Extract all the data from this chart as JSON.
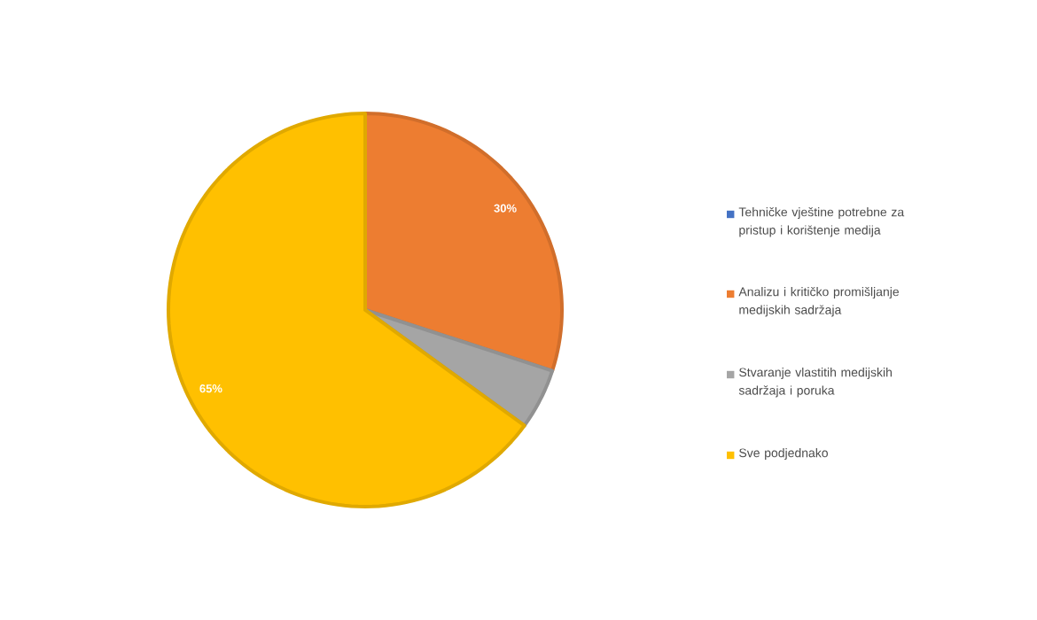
{
  "chart_data": {
    "type": "pie",
    "categories": [
      "Tehničke vještine potrebne za pristup i korištenje medija",
      "Analizu i kritičko promišljanje medijskih sadržaja",
      "Stvaranje vlastitih medijskih sadržaja i poruka",
      "Sve podjednako"
    ],
    "values": [
      0,
      30,
      5,
      65
    ],
    "colors": [
      "#4472c4",
      "#ed7d31",
      "#a5a5a5",
      "#ffc000"
    ],
    "value_labels": [
      null,
      "30%",
      null,
      "65%"
    ],
    "legend": "right"
  }
}
